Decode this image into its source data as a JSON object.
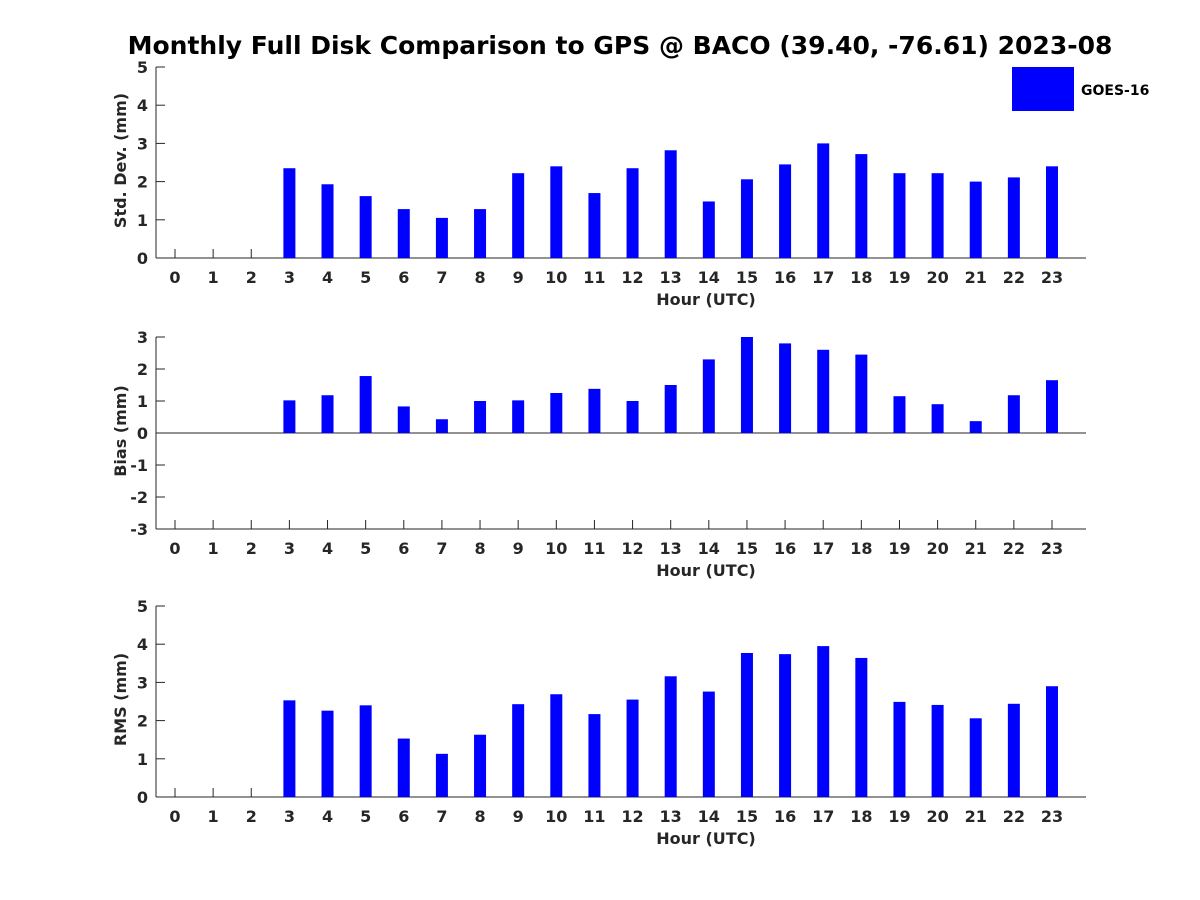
{
  "title": "Monthly Full Disk Comparison to GPS @ BACO (39.40, -76.61) 2023-08",
  "colors": {
    "bar": "#0000ff",
    "axis": "#262626"
  },
  "legend": {
    "label": "GOES-16",
    "placement": "top-right"
  },
  "chart_data": [
    {
      "type": "bar",
      "xlabel": "Hour (UTC)",
      "ylabel": "Std. Dev. (mm)",
      "ylim": [
        0,
        5
      ],
      "yticks": [
        "0",
        "1",
        "2",
        "3",
        "4",
        "5"
      ],
      "categories": [
        "0",
        "1",
        "2",
        "3",
        "4",
        "5",
        "6",
        "7",
        "8",
        "9",
        "10",
        "11",
        "12",
        "13",
        "14",
        "15",
        "16",
        "17",
        "18",
        "19",
        "20",
        "21",
        "22",
        "23"
      ],
      "series": [
        {
          "name": "GOES-16",
          "values": [
            null,
            null,
            null,
            2.35,
            1.93,
            1.62,
            1.28,
            1.05,
            1.28,
            2.22,
            2.4,
            1.7,
            2.35,
            2.82,
            1.48,
            2.06,
            2.45,
            3.0,
            2.72,
            2.22,
            2.22,
            2.0,
            2.11,
            2.4
          ]
        }
      ]
    },
    {
      "type": "bar",
      "xlabel": "Hour (UTC)",
      "ylabel": "Bias (mm)",
      "ylim": [
        -3,
        3
      ],
      "yticks": [
        "-3",
        "-2",
        "-1",
        "0",
        "1",
        "2",
        "3"
      ],
      "categories": [
        "0",
        "1",
        "2",
        "3",
        "4",
        "5",
        "6",
        "7",
        "8",
        "9",
        "10",
        "11",
        "12",
        "13",
        "14",
        "15",
        "16",
        "17",
        "18",
        "19",
        "20",
        "21",
        "22",
        "23"
      ],
      "series": [
        {
          "name": "GOES-16",
          "values": [
            null,
            null,
            null,
            1.02,
            1.18,
            1.78,
            0.83,
            0.43,
            1.0,
            1.02,
            1.25,
            1.38,
            1.0,
            1.5,
            2.3,
            3.0,
            2.8,
            2.6,
            2.45,
            1.15,
            0.9,
            0.37,
            1.18,
            1.65
          ]
        }
      ]
    },
    {
      "type": "bar",
      "xlabel": "Hour (UTC)",
      "ylabel": "RMS (mm)",
      "ylim": [
        0,
        5
      ],
      "yticks": [
        "0",
        "1",
        "2",
        "3",
        "4",
        "5"
      ],
      "categories": [
        "0",
        "1",
        "2",
        "3",
        "4",
        "5",
        "6",
        "7",
        "8",
        "9",
        "10",
        "11",
        "12",
        "13",
        "14",
        "15",
        "16",
        "17",
        "18",
        "19",
        "20",
        "21",
        "22",
        "23"
      ],
      "series": [
        {
          "name": "GOES-16",
          "values": [
            null,
            null,
            null,
            2.53,
            2.26,
            2.4,
            1.53,
            1.13,
            1.63,
            2.43,
            2.69,
            2.17,
            2.55,
            3.16,
            2.76,
            3.77,
            3.74,
            3.95,
            3.64,
            2.49,
            2.41,
            2.06,
            2.44,
            2.9
          ]
        }
      ]
    }
  ]
}
